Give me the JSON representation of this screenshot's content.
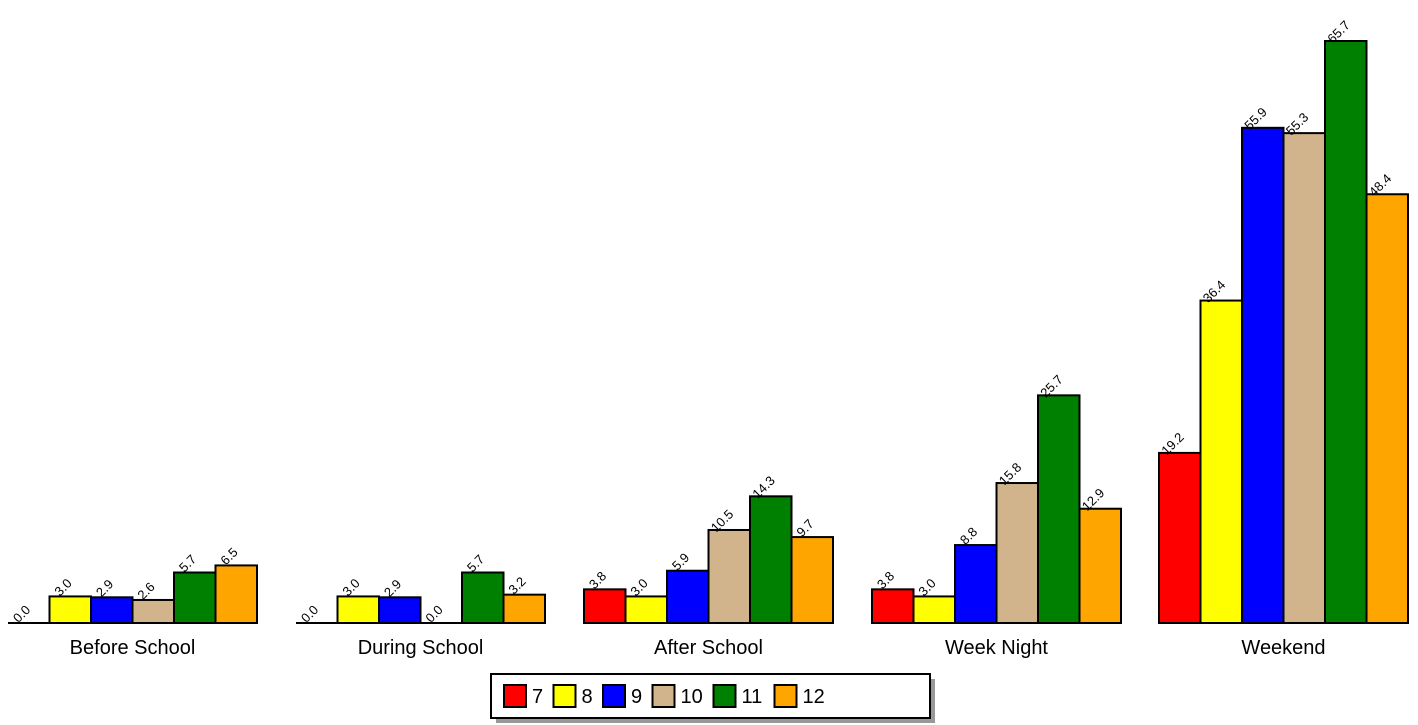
{
  "chart_data": {
    "type": "bar",
    "categories": [
      "Before School",
      "During School",
      "After School",
      "Week Night",
      "Weekend"
    ],
    "series": [
      {
        "name": "7",
        "color": "#ff0000",
        "values": [
          0.0,
          0.0,
          3.8,
          3.8,
          19.2
        ]
      },
      {
        "name": "8",
        "color": "#ffff00",
        "values": [
          3.0,
          3.0,
          3.0,
          3.0,
          36.4
        ]
      },
      {
        "name": "9",
        "color": "#0000ff",
        "values": [
          2.9,
          2.9,
          5.9,
          8.8,
          55.9
        ]
      },
      {
        "name": "10",
        "color": "#d2b48c",
        "values": [
          2.6,
          0.0,
          10.5,
          15.8,
          55.3
        ]
      },
      {
        "name": "11",
        "color": "#008000",
        "values": [
          5.7,
          5.7,
          14.3,
          25.7,
          65.7
        ]
      },
      {
        "name": "12",
        "color": "#ffa500",
        "values": [
          6.5,
          3.2,
          9.7,
          12.9,
          48.4
        ]
      }
    ],
    "ylim": [
      0,
      70
    ],
    "grid": false,
    "legend_placement": "bottom-center",
    "value_format_decimals": 1
  }
}
